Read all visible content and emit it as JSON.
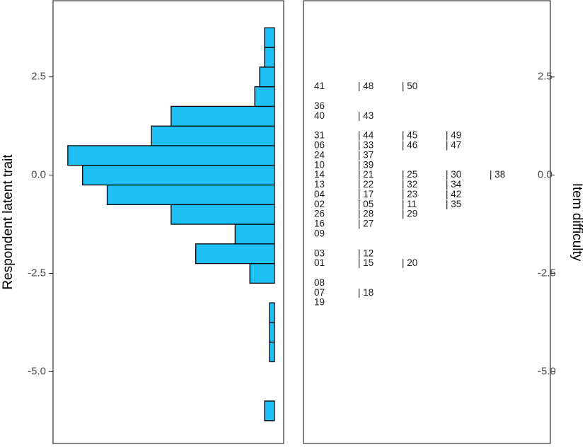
{
  "chart_data": {
    "type": "wrightmap",
    "ylabel": "Respondent latent trait",
    "y2label": "Item difficulty",
    "ylim": [
      -6.83,
      4.44
    ],
    "yticks": [
      2.5,
      {
        "value": 0,
        "label": "0.0"
      },
      -2.5,
      {
        "value": -5,
        "label": "-5.0"
      }
    ],
    "y2lim": [
      -6.83,
      4.44
    ],
    "y2ticks": [
      2.5,
      {
        "value": 0,
        "label": "0.0"
      },
      -2.5,
      {
        "value": -5,
        "label": "-5.0"
      }
    ],
    "xlim": [
      0,
      45
    ],
    "color": "#1ec0f5",
    "bins": [
      -6.25,
      -5.75,
      -5.25,
      -4.75,
      -4.25,
      -3.75,
      -3.25,
      -2.75,
      -2.25,
      -1.75,
      -1.25,
      -0.75,
      -0.25,
      0.25,
      0.75,
      1.25,
      1.75,
      2.25,
      2.75,
      3.25,
      3.75
    ],
    "counts": [
      2,
      0,
      0,
      1,
      1,
      1,
      0,
      5,
      16,
      8,
      21,
      34,
      39,
      42,
      25,
      21,
      4,
      3,
      2,
      2
    ],
    "items": [
      {
        "value": 2.25,
        "labels": [
          "41",
          "| 48",
          "| 50"
        ]
      },
      {
        "value": 1.75,
        "labels": [
          "36"
        ]
      },
      {
        "value": 1.5,
        "labels": [
          "40",
          "| 43"
        ]
      },
      {
        "value": 1.0,
        "labels": [
          "31",
          "| 44",
          "| 45",
          "| 49"
        ]
      },
      {
        "value": 0.75,
        "labels": [
          "06",
          "| 33",
          "| 46",
          "| 47"
        ]
      },
      {
        "value": 0.5,
        "labels": [
          "24",
          "| 37"
        ]
      },
      {
        "value": 0.25,
        "labels": [
          "10",
          "| 39"
        ]
      },
      {
        "value": 0.0,
        "labels": [
          "14",
          "| 21",
          "| 25",
          "| 30",
          "| 38"
        ]
      },
      {
        "value": -0.25,
        "labels": [
          "13",
          "| 22",
          "| 32",
          "| 34"
        ]
      },
      {
        "value": -0.5,
        "labels": [
          "04",
          "| 17",
          "| 23",
          "| 42"
        ]
      },
      {
        "value": -0.75,
        "labels": [
          "02",
          "| 05",
          "| 11",
          "| 35"
        ]
      },
      {
        "value": -1.0,
        "labels": [
          "26",
          "| 28",
          "| 29"
        ]
      },
      {
        "value": -1.25,
        "labels": [
          "16",
          "| 27"
        ]
      },
      {
        "value": -1.5,
        "labels": [
          "09"
        ]
      },
      {
        "value": -2.0,
        "labels": [
          "03",
          "| 12"
        ]
      },
      {
        "value": -2.25,
        "labels": [
          "01",
          "| 15",
          "| 20"
        ]
      },
      {
        "value": -2.75,
        "labels": [
          "08"
        ]
      },
      {
        "value": -3.0,
        "labels": [
          "07",
          "| 18"
        ]
      },
      {
        "value": -3.25,
        "labels": [
          "19"
        ]
      }
    ]
  }
}
